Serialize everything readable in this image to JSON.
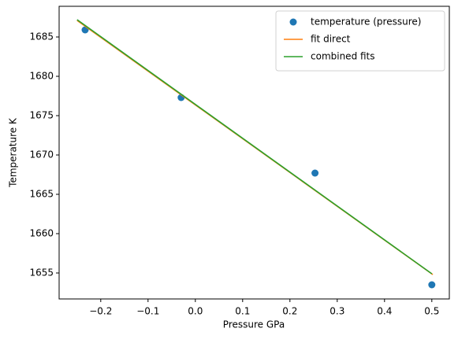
{
  "chart_data": {
    "type": "line",
    "xlabel": "Pressure GPa",
    "ylabel": "Temperature K",
    "xlim": [
      -0.288,
      0.537
    ],
    "ylim": [
      1651.7,
      1688.9
    ],
    "xticks": [
      {
        "value": -0.2,
        "label": "−0.2"
      },
      {
        "value": -0.1,
        "label": "−0.1"
      },
      {
        "value": 0.0,
        "label": "0.0"
      },
      0.1,
      0.2,
      0.3,
      0.4,
      0.5
    ],
    "yticks": [
      1655,
      1660,
      1665,
      1670,
      1675,
      1680,
      1685
    ],
    "legend": "upper right",
    "series": [
      {
        "name": "temperature (pressure)",
        "type": "scatter",
        "color": "#1f77b4",
        "x": [
          -0.233,
          -0.03,
          0.253,
          0.5
        ],
        "values": [
          1685.9,
          1677.3,
          1667.7,
          1653.5
        ]
      },
      {
        "name": "fit direct",
        "type": "line",
        "color": "#ff7f0e",
        "x": [
          -0.25,
          0.502
        ],
        "values": [
          1687.1,
          1654.8
        ]
      },
      {
        "name": "combined fits",
        "type": "line",
        "color": "#2ca02c",
        "x": [
          -0.25,
          0.5
        ],
        "values": [
          1687.2,
          1654.9
        ]
      }
    ]
  }
}
